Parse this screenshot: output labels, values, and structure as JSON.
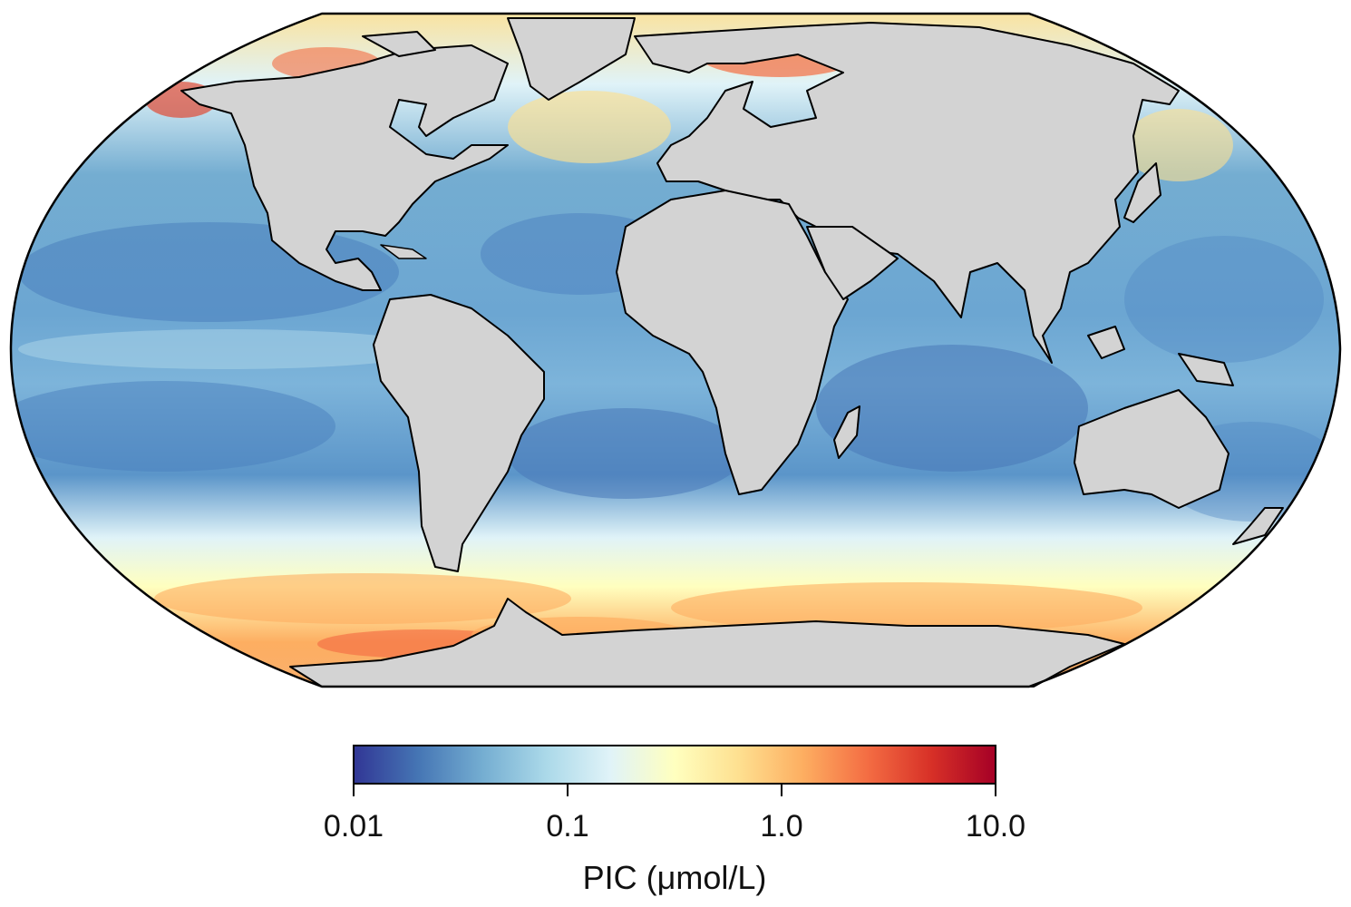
{
  "map": {
    "projection": "Robinson",
    "ocean_palette": [
      "#313695",
      "#4575b4",
      "#74add1",
      "#abd9e9",
      "#e0f3f8",
      "#ffffbf",
      "#fee090",
      "#fdae61",
      "#f46d43",
      "#d73027",
      "#a50026"
    ],
    "land_color": "#d3d3d3",
    "coastline_color": "#000000"
  },
  "colorbar": {
    "label": "PIC (μmol/L)",
    "scale": "log",
    "range": [
      0.01,
      10.0
    ],
    "ticks": [
      {
        "value": 0.01,
        "label": "0.01"
      },
      {
        "value": 0.1,
        "label": "0.1"
      },
      {
        "value": 1.0,
        "label": "1.0"
      },
      {
        "value": 10.0,
        "label": "10.0"
      }
    ]
  }
}
